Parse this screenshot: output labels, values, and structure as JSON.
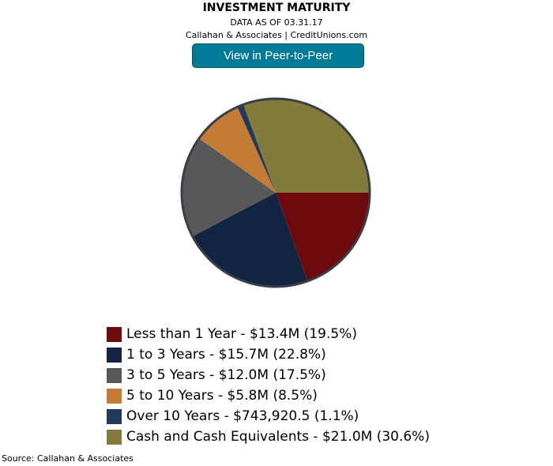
{
  "header": {
    "title": "INVESTMENT MATURITY",
    "date_line": "DATA AS OF 03.31.17",
    "credit_line": "Callahan & Associates | CreditUnions.com",
    "button_label": "View in Peer-to-Peer"
  },
  "chart_data": {
    "type": "pie",
    "title": "INVESTMENT MATURITY",
    "slices": [
      {
        "label": "Less than 1 Year - $13.4M (19.5%)",
        "value": 19.5,
        "color": "#6e0a0e"
      },
      {
        "label": "1 to 3 Years - $15.7M (22.8%)",
        "value": 22.8,
        "color": "#112441"
      },
      {
        "label": "3 to 5 Years - $12.0M (17.5%)",
        "value": 17.5,
        "color": "#58585a"
      },
      {
        "label": "5 to 10 Years - $5.8M (8.5%)",
        "value": 8.5,
        "color": "#c47b33"
      },
      {
        "label": "Over 10 Years - $743,920.5 (1.1%)",
        "value": 1.1,
        "color": "#22395e"
      },
      {
        "label": "Cash and Cash Equivalents - $21.0M (30.6%)",
        "value": 30.6,
        "color": "#837b3b"
      }
    ],
    "legend_position": "bottom"
  },
  "footer": {
    "source": "Source: Callahan & Associates"
  }
}
